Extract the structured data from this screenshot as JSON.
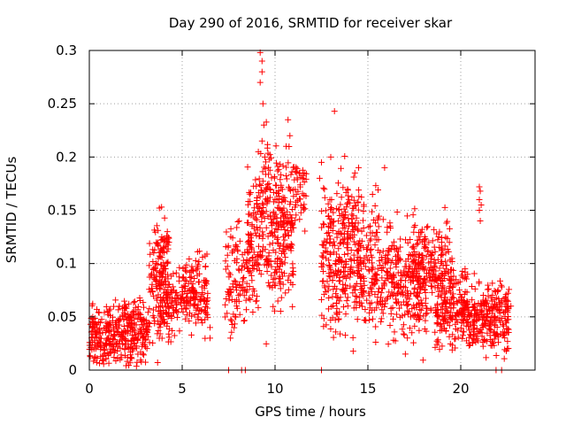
{
  "chart_data": {
    "type": "scatter",
    "title": "Day 290 of 2016, SRMTID for receiver skar",
    "xlabel": "GPS time / hours",
    "ylabel": "SRMTID / TECUs",
    "xlim": [
      0,
      24
    ],
    "ylim": [
      0,
      0.3
    ],
    "xticks": [
      0,
      5,
      10,
      15,
      20
    ],
    "xtick_labels": [
      "0",
      "5",
      "10",
      "15",
      "20"
    ],
    "yticks": [
      0,
      0.05,
      0.1,
      0.15,
      0.2,
      0.25,
      0.3
    ],
    "ytick_labels": [
      "0",
      "0.05",
      "0.1",
      "0.15",
      "0.2",
      "0.25",
      "0.3"
    ],
    "grid": true,
    "marker": "+",
    "series_color": "#ff0000",
    "zero_points_x": [
      7.5,
      8.2,
      8.4,
      12.5,
      21.9,
      22.2
    ],
    "clusters": [
      {
        "x_range": [
          0.0,
          3.2
        ],
        "y_center": 0.032,
        "y_spread": 0.014,
        "count": 300
      },
      {
        "x_range": [
          1.3,
          3.0
        ],
        "y_center": 0.045,
        "y_spread": 0.015,
        "count": 60
      },
      {
        "x_range": [
          3.2,
          4.3
        ],
        "y_center": 0.08,
        "y_spread": 0.028,
        "count": 130
      },
      {
        "x_range": [
          3.5,
          4.3
        ],
        "y_center": 0.12,
        "y_spread": 0.012,
        "count": 30
      },
      {
        "x_range": [
          3.8,
          6.4
        ],
        "y_center": 0.065,
        "y_spread": 0.015,
        "count": 200
      },
      {
        "x_range": [
          5.0,
          6.3
        ],
        "y_center": 0.095,
        "y_spread": 0.01,
        "count": 40
      },
      {
        "x_range": [
          7.3,
          8.8
        ],
        "y_center": 0.09,
        "y_spread": 0.025,
        "count": 110
      },
      {
        "x_range": [
          8.5,
          11.0
        ],
        "y_center": 0.12,
        "y_spread": 0.03,
        "count": 290
      },
      {
        "x_range": [
          9.0,
          11.0
        ],
        "y_center": 0.17,
        "y_spread": 0.022,
        "count": 80
      },
      {
        "x_range": [
          11.0,
          11.7
        ],
        "y_center": 0.17,
        "y_spread": 0.015,
        "count": 40
      },
      {
        "x_range": [
          12.5,
          14.6
        ],
        "y_center": 0.105,
        "y_spread": 0.035,
        "count": 280
      },
      {
        "x_range": [
          13.4,
          15.6
        ],
        "y_center": 0.14,
        "y_spread": 0.02,
        "count": 60
      },
      {
        "x_range": [
          14.6,
          18.2
        ],
        "y_center": 0.085,
        "y_spread": 0.025,
        "count": 380
      },
      {
        "x_range": [
          17.4,
          19.6
        ],
        "y_center": 0.095,
        "y_spread": 0.02,
        "count": 170
      },
      {
        "x_range": [
          18.6,
          20.4
        ],
        "y_center": 0.06,
        "y_spread": 0.018,
        "count": 190
      },
      {
        "x_range": [
          20.4,
          22.6
        ],
        "y_center": 0.05,
        "y_spread": 0.016,
        "count": 250
      }
    ],
    "extra_points": [
      [
        9.2,
        0.298
      ],
      [
        9.3,
        0.29
      ],
      [
        9.3,
        0.28
      ],
      [
        9.2,
        0.27
      ],
      [
        9.35,
        0.25
      ],
      [
        9.4,
        0.23
      ],
      [
        9.3,
        0.215
      ],
      [
        9.1,
        0.205
      ],
      [
        9.45,
        0.2
      ],
      [
        10.7,
        0.235
      ],
      [
        10.8,
        0.22
      ],
      [
        10.6,
        0.21
      ],
      [
        13.2,
        0.243
      ],
      [
        13.0,
        0.2
      ],
      [
        15.9,
        0.19
      ],
      [
        21.0,
        0.172
      ],
      [
        21.05,
        0.168
      ],
      [
        21.0,
        0.16
      ],
      [
        21.1,
        0.155
      ],
      [
        21.05,
        0.14
      ],
      [
        21.0,
        0.15
      ],
      [
        3.9,
        0.125
      ],
      [
        4.2,
        0.13
      ],
      [
        6.5,
        0.03
      ],
      [
        6.5,
        0.04
      ],
      [
        22.7,
        0.06
      ],
      [
        22.5,
        0.02
      ],
      [
        7.6,
        0.03
      ],
      [
        11.3,
        0.185
      ],
      [
        11.5,
        0.18
      ],
      [
        14.3,
        0.185
      ],
      [
        14.5,
        0.19
      ],
      [
        12.5,
        0.195
      ],
      [
        12.4,
        0.18
      ],
      [
        16.2,
        0.135
      ]
    ]
  }
}
